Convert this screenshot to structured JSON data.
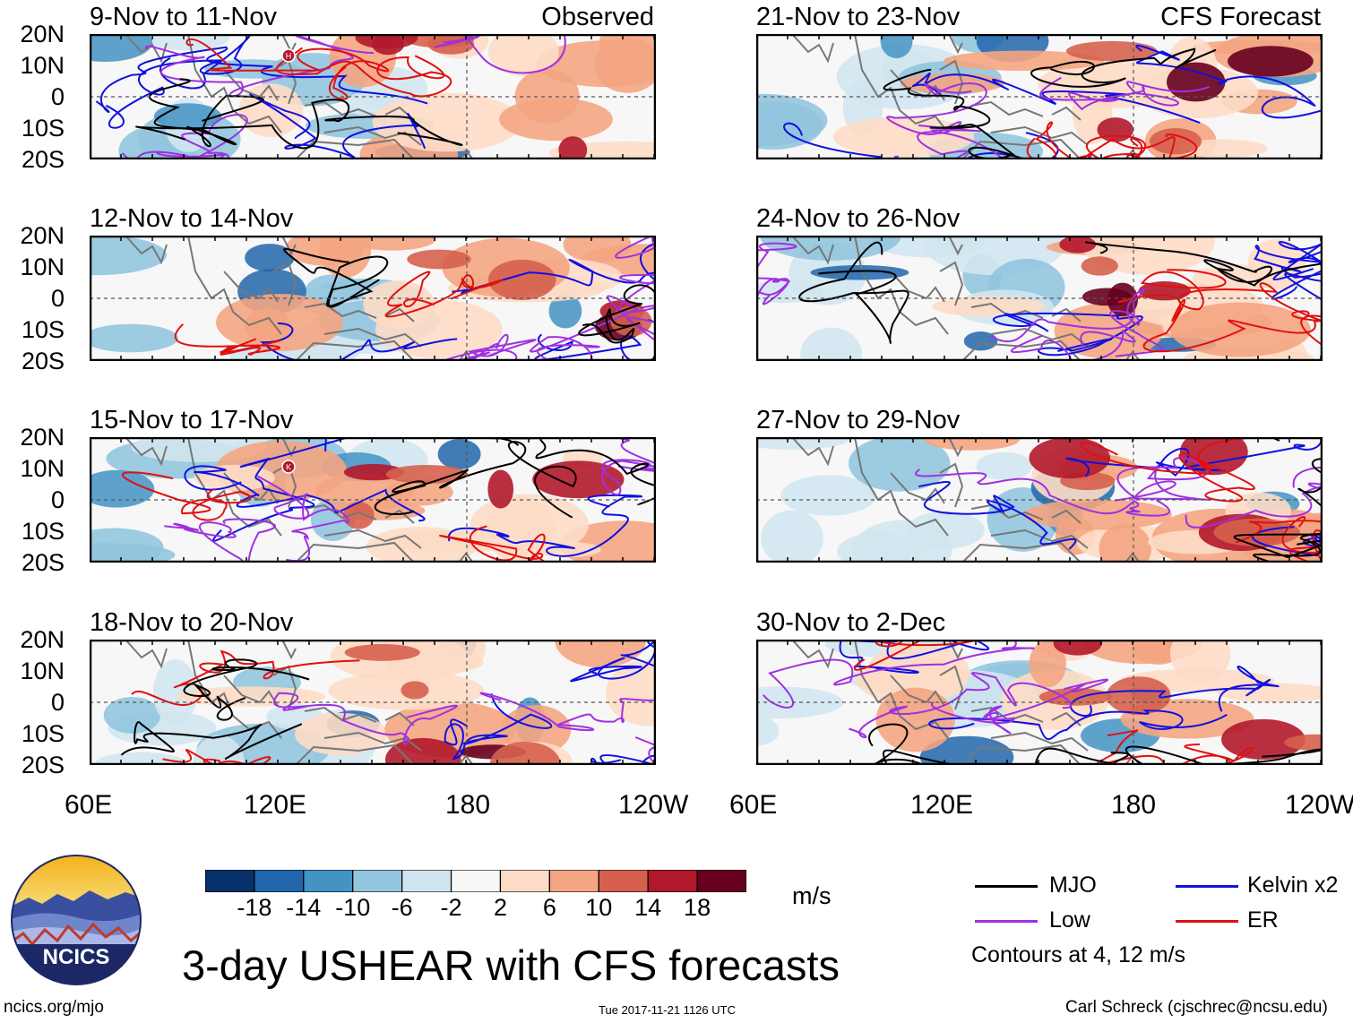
{
  "panels": [
    {
      "title": "9-Nov to 11-Nov",
      "tag": "Observed",
      "storm": "H"
    },
    {
      "title": "21-Nov to 23-Nov",
      "tag": "CFS Forecast",
      "storm": ""
    },
    {
      "title": "12-Nov to 14-Nov",
      "tag": "",
      "storm": ""
    },
    {
      "title": "24-Nov to 26-Nov",
      "tag": "",
      "storm": ""
    },
    {
      "title": "15-Nov to 17-Nov",
      "tag": "",
      "storm": "K"
    },
    {
      "title": "27-Nov to 29-Nov",
      "tag": "",
      "storm": ""
    },
    {
      "title": "18-Nov to 20-Nov",
      "tag": "",
      "storm": ""
    },
    {
      "title": "30-Nov to 2-Dec",
      "tag": "",
      "storm": ""
    }
  ],
  "latitude_labels": [
    "20N",
    "10N",
    "0",
    "10S",
    "20S"
  ],
  "longitude_labels": [
    "60E",
    "120E",
    "180",
    "120W"
  ],
  "colorbar": {
    "ticks": [
      "-18",
      "-14",
      "-10",
      "-6",
      "-2",
      "2",
      "6",
      "10",
      "14",
      "18"
    ],
    "colors": [
      "#08306b",
      "#2166ac",
      "#4393c3",
      "#92c5de",
      "#d1e5f0",
      "#f7f7f7",
      "#fddbc7",
      "#f4a582",
      "#d6604d",
      "#b2182b",
      "#67001f"
    ],
    "units": "m/s"
  },
  "legend": {
    "items": [
      {
        "label": "MJO",
        "color": "#000000"
      },
      {
        "label": "Kelvin x2",
        "color": "#1010e0"
      },
      {
        "label": "Low",
        "color": "#a030e0"
      },
      {
        "label": "ER",
        "color": "#e01010"
      }
    ],
    "note": "Contours at 4, 12 m/s"
  },
  "logo_text": "NCICS",
  "main_title": "3-day USHEAR with CFS forecasts",
  "footer": {
    "left": "ncics.org/mjo",
    "center": "Tue 2017-11-21 1126 UTC",
    "right": "Carl Schreck (cjschrec@ncsu.edu)"
  }
}
